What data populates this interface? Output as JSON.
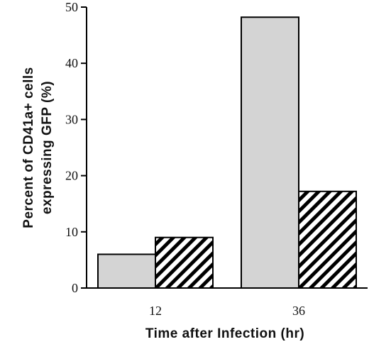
{
  "chart_data": {
    "type": "bar",
    "title": "",
    "xlabel": "Time after Infection (hr)",
    "ylabel_line1": "Percent of CD41a+ cells",
    "ylabel_line2": "expressing GFP (%)",
    "categories": [
      "12",
      "36"
    ],
    "series": [
      {
        "fill": "#d4d4d4",
        "pattern": "solid",
        "values": [
          6,
          48.2
        ]
      },
      {
        "fill": "#000000",
        "pattern": "diagonal-stripes",
        "values": [
          9,
          17.2
        ]
      }
    ],
    "ylim": [
      0,
      50
    ],
    "yticks": [
      "0",
      "10",
      "20",
      "30",
      "40",
      "50"
    ],
    "grid": false,
    "legend": "none"
  }
}
